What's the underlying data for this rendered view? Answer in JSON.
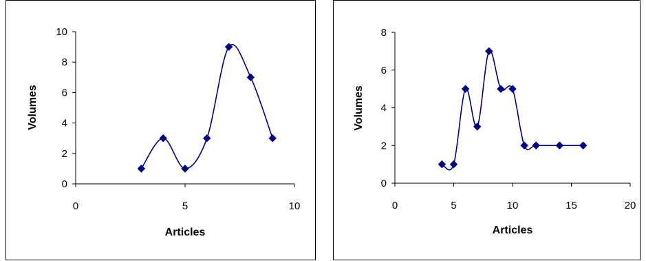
{
  "chart_data": [
    {
      "type": "scatter",
      "title": "",
      "xlabel": "Articles",
      "ylabel": "Volumes",
      "xlim": [
        0,
        10
      ],
      "ylim": [
        0,
        10
      ],
      "x_ticks": [
        0,
        5,
        10
      ],
      "y_ticks": [
        0,
        2,
        4,
        6,
        8,
        10
      ],
      "grid": false,
      "legend": "none",
      "smooth_line": true,
      "color": "#00007F",
      "series": [
        {
          "x": [
            3,
            4,
            5,
            6,
            7,
            8,
            9
          ],
          "y": [
            1,
            3,
            1,
            3,
            9,
            7,
            3
          ]
        }
      ]
    },
    {
      "type": "scatter",
      "title": "",
      "xlabel": "Articles",
      "ylabel": "Volumes",
      "xlim": [
        0,
        20
      ],
      "ylim": [
        0,
        8
      ],
      "x_ticks": [
        0,
        5,
        10,
        15,
        20
      ],
      "y_ticks": [
        0,
        2,
        4,
        6,
        8
      ],
      "grid": false,
      "legend": "none",
      "smooth_line": true,
      "color": "#00007F",
      "series": [
        {
          "x": [
            4,
            5,
            6,
            7,
            8,
            9,
            10,
            11,
            12,
            14,
            16
          ],
          "y": [
            1,
            1,
            5,
            3,
            7,
            5,
            5,
            2,
            2,
            2,
            2
          ]
        }
      ]
    }
  ]
}
